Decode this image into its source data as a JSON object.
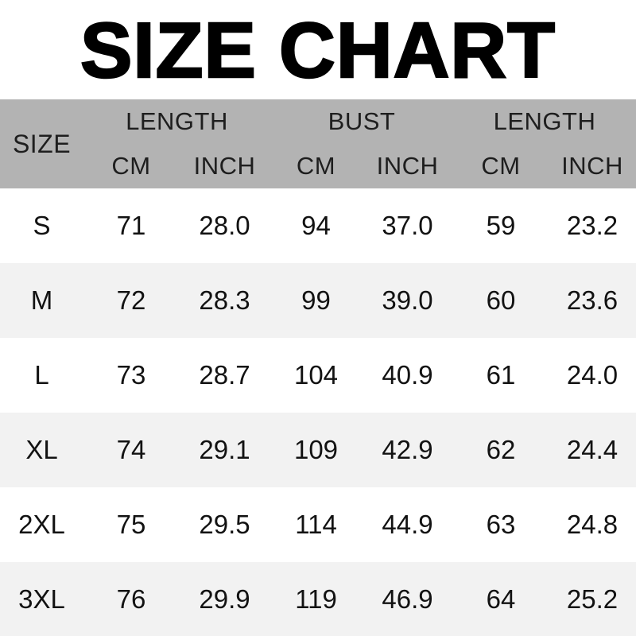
{
  "title": "SIZE CHART",
  "colors": {
    "header_band_bg": "#b3b3b3",
    "row_alt_bg": "#f2f2f2",
    "row_bg": "#ffffff",
    "text": "#121212",
    "title_text": "#000000"
  },
  "table": {
    "size_header": "SIZE",
    "groups": [
      "LENGTH",
      "BUST",
      "LENGTH"
    ],
    "sub_headers": [
      "CM",
      "INCH",
      "CM",
      "INCH",
      "CM",
      "INCH"
    ],
    "rows": [
      {
        "size": "S",
        "values": [
          "71",
          "28.0",
          "94",
          "37.0",
          "59",
          "23.2"
        ]
      },
      {
        "size": "M",
        "values": [
          "72",
          "28.3",
          "99",
          "39.0",
          "60",
          "23.6"
        ]
      },
      {
        "size": "L",
        "values": [
          "73",
          "28.7",
          "104",
          "40.9",
          "61",
          "24.0"
        ]
      },
      {
        "size": "XL",
        "values": [
          "74",
          "29.1",
          "109",
          "42.9",
          "62",
          "24.4"
        ]
      },
      {
        "size": "2XL",
        "values": [
          "75",
          "29.5",
          "114",
          "44.9",
          "63",
          "24.8"
        ]
      },
      {
        "size": "3XL",
        "values": [
          "76",
          "29.9",
          "119",
          "46.9",
          "64",
          "25.2"
        ]
      }
    ]
  },
  "chart_data": {
    "type": "table",
    "title": "SIZE CHART",
    "columns": [
      "SIZE",
      "LENGTH CM",
      "LENGTH INCH",
      "BUST CM",
      "BUST INCH",
      "LENGTH CM",
      "LENGTH INCH"
    ],
    "rows": [
      [
        "S",
        71,
        28.0,
        94,
        37.0,
        59,
        23.2
      ],
      [
        "M",
        72,
        28.3,
        99,
        39.0,
        60,
        23.6
      ],
      [
        "L",
        73,
        28.7,
        104,
        40.9,
        61,
        24.0
      ],
      [
        "XL",
        74,
        29.1,
        109,
        42.9,
        62,
        24.4
      ],
      [
        "2XL",
        75,
        29.5,
        114,
        44.9,
        63,
        24.8
      ],
      [
        "3XL",
        76,
        29.9,
        119,
        46.9,
        64,
        25.2
      ]
    ]
  }
}
